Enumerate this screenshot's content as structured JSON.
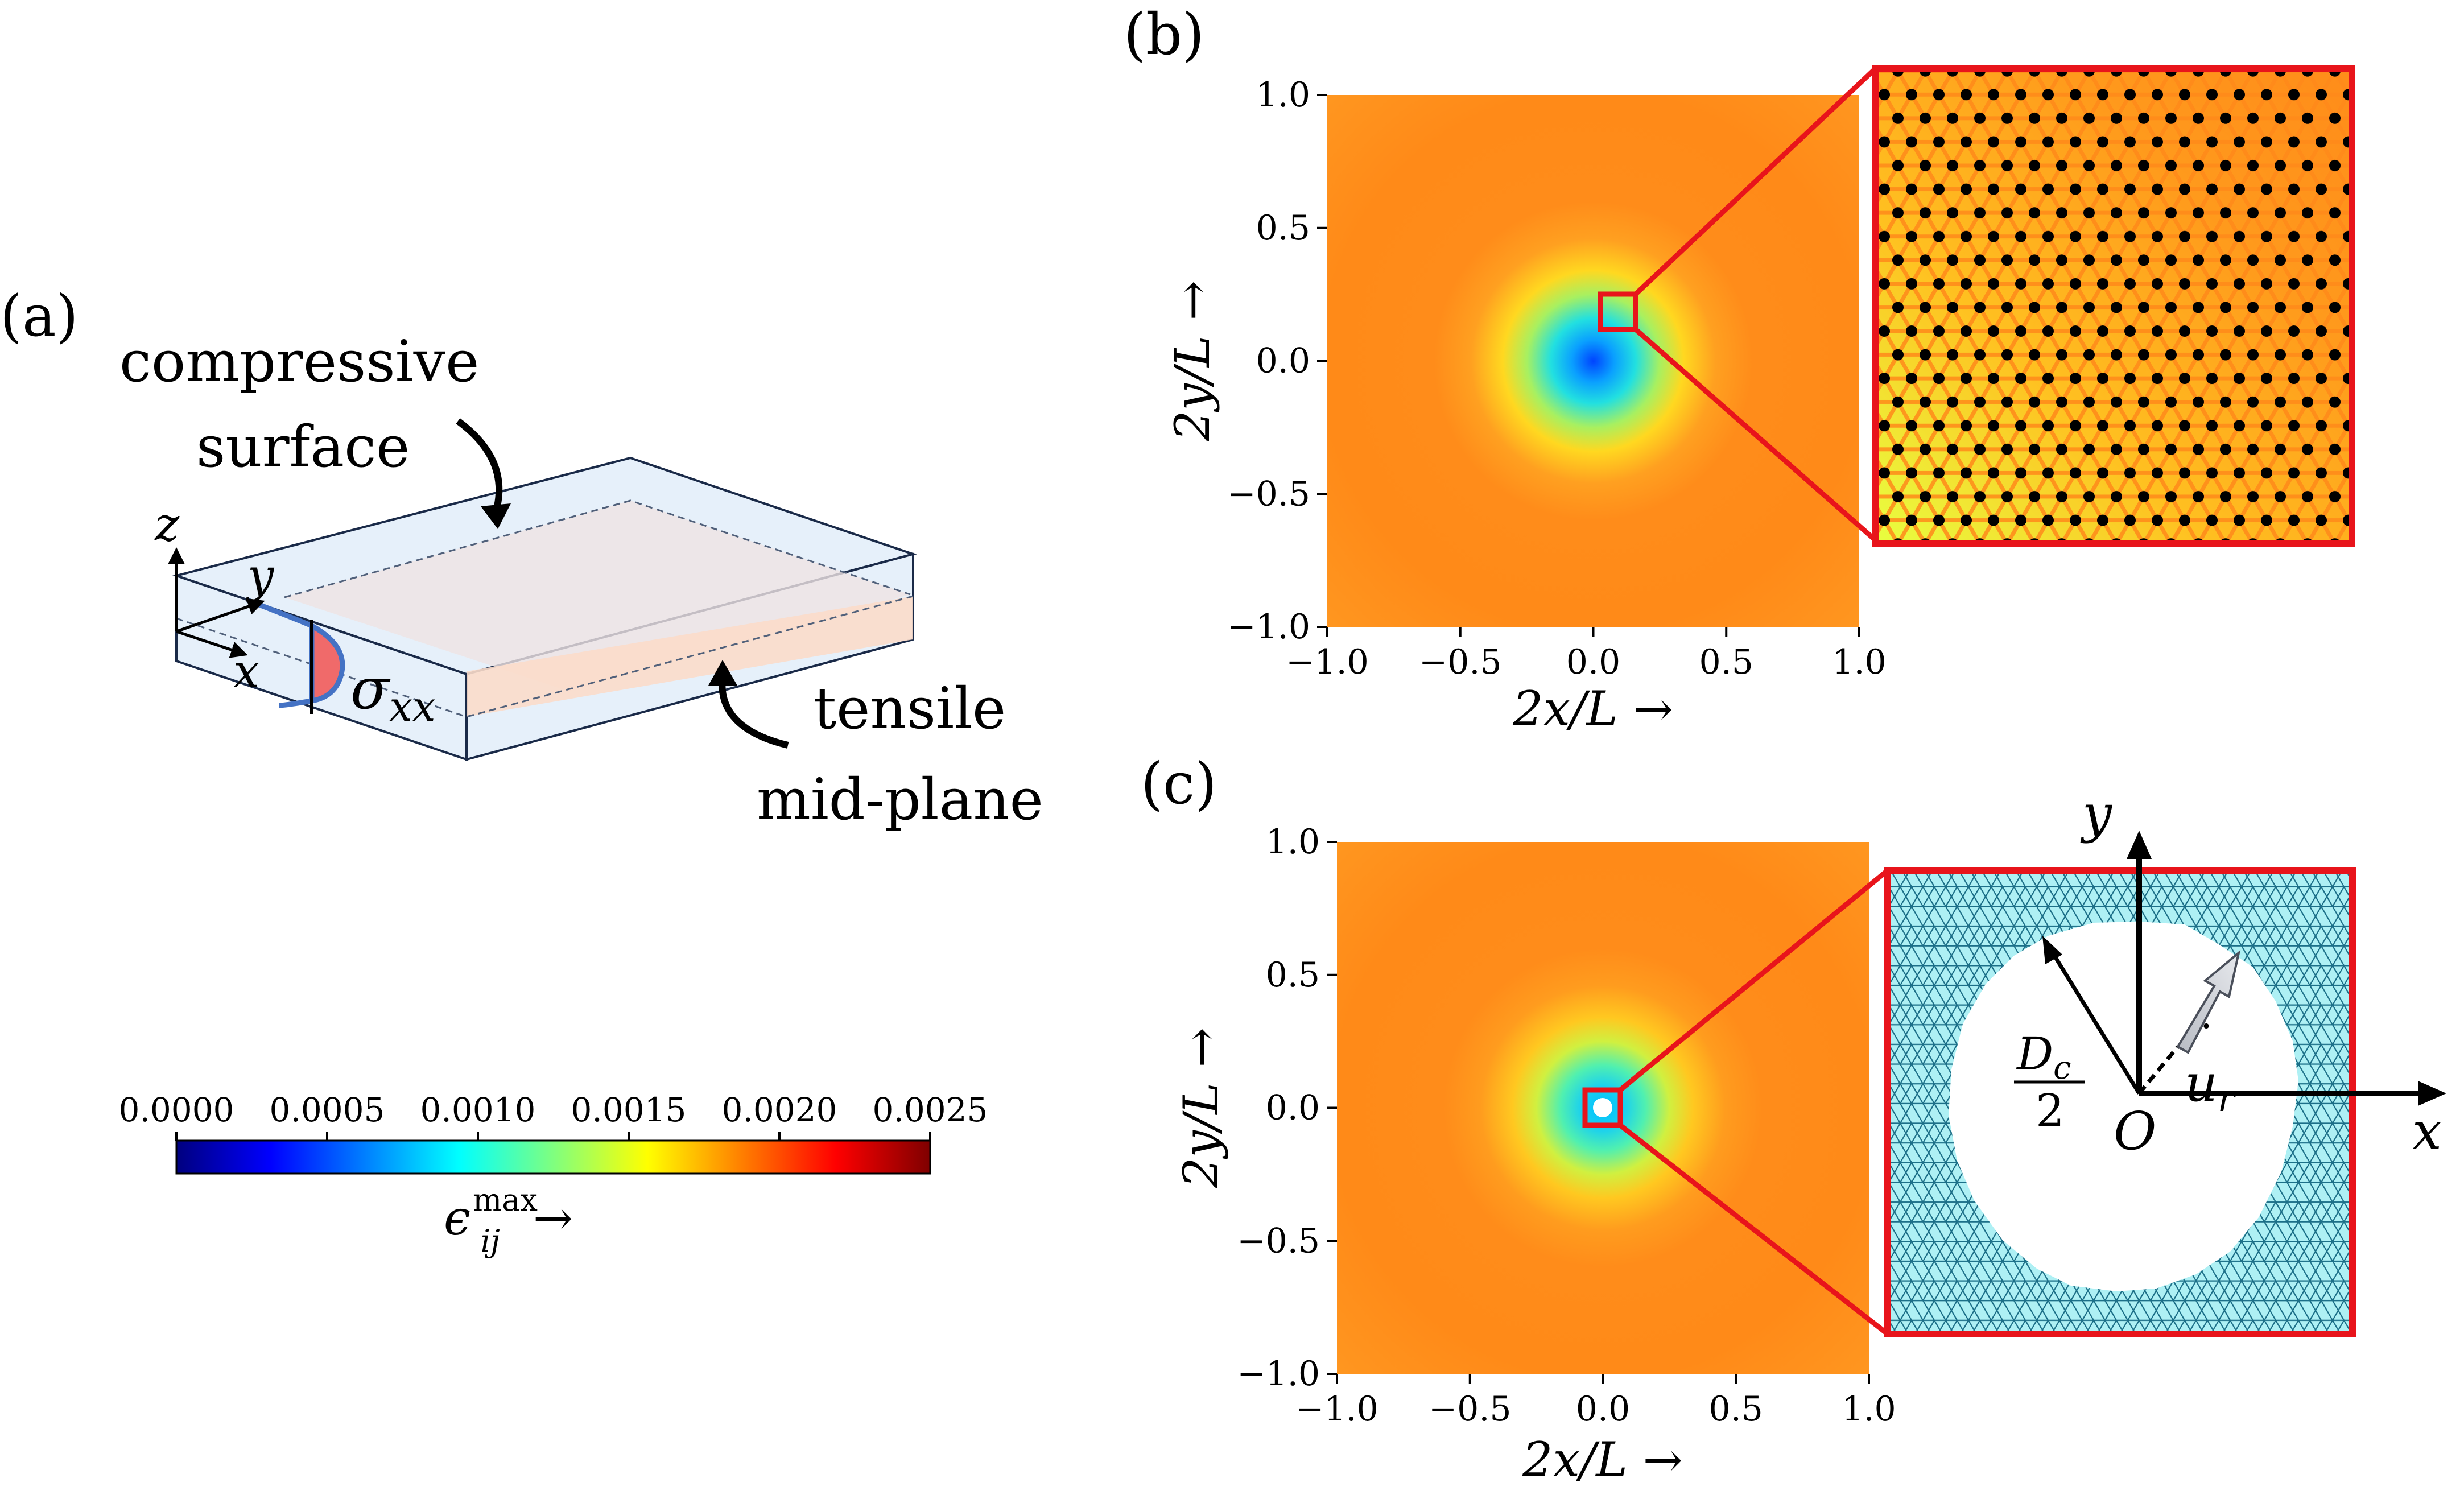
{
  "panel_a": {
    "label": "(a)",
    "compressive_line1": "compressive",
    "compressive_line2": "surface",
    "tensile_line1": "tensile",
    "tensile_line2": "mid-plane",
    "axis_z": "z",
    "axis_y": "y",
    "axis_x": "x",
    "stress_base": "σ",
    "stress_sub": "xx"
  },
  "colorbar": {
    "ticks": [
      "0.0000",
      "0.0005",
      "0.0010",
      "0.0015",
      "0.0020",
      "0.0025"
    ],
    "label_base": "ϵ",
    "label_sup": "max",
    "label_sub": "ij",
    "label_arrow": "→",
    "colormap": [
      "#00007f",
      "#0000ff",
      "#007fff",
      "#00ffff",
      "#7fff7f",
      "#ffff00",
      "#ff7f00",
      "#ff0000",
      "#7f0000"
    ]
  },
  "panel_b": {
    "label": "(b)",
    "xlabel": "2x/L →",
    "ylabel": "2y/L →",
    "xticks": [
      "−1.0",
      "−0.5",
      "0.0",
      "0.5",
      "1.0"
    ],
    "yticks": [
      "1.0",
      "0.5",
      "0.0",
      "−0.5",
      "−1.0"
    ]
  },
  "panel_c": {
    "label": "(c)",
    "xlabel": "2x/L →",
    "ylabel": "2y/L →",
    "xticks": [
      "−1.0",
      "−0.5",
      "0.0",
      "0.5",
      "1.0"
    ],
    "yticks": [
      "1.0",
      "0.5",
      "0.0",
      "−0.5",
      "−1.0"
    ],
    "inset_axis_x": "x",
    "inset_axis_y": "y",
    "origin": "O",
    "radius_num": "D",
    "radius_num_sub": "c",
    "radius_den": "2",
    "displacement_base": "u",
    "displacement_sub": "r"
  },
  "colors": {
    "field_orange": "#ff8c1a",
    "zoom_red": "#e8141b",
    "lattice_cyan": "#aef0f4",
    "box_edge": "#1a2a48",
    "slab_fill": "#e6f0fa",
    "midplane_fill": "#fbdcca",
    "stress_blue": "#4472c4",
    "stress_red": "#f06a6a"
  }
}
